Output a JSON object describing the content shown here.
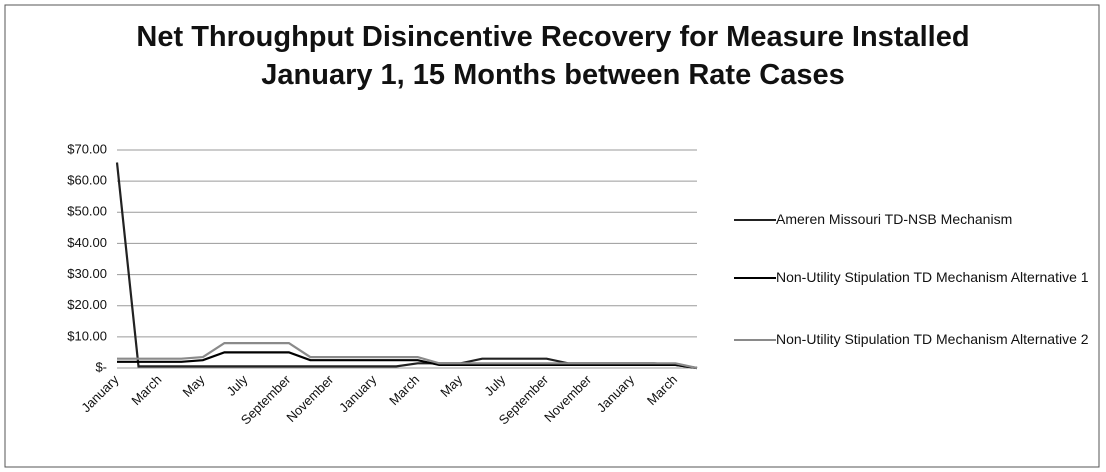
{
  "chart_data": {
    "type": "line",
    "title": "Net Throughput Disincentive Recovery for Measure Installed January 1, 15 Months between Rate Cases",
    "categories": [
      "January",
      null,
      "March",
      null,
      "May",
      null,
      "July",
      null,
      "September",
      null,
      "November",
      null,
      "January",
      null,
      "March",
      null,
      "May",
      null,
      "July",
      null,
      "September",
      null,
      "November",
      null,
      "January",
      null,
      "March",
      null
    ],
    "series": [
      {
        "name": "Ameren Missouri TD-NSB Mechanism",
        "color": "#222222",
        "values": [
          66,
          0.5,
          0.5,
          0.5,
          0.5,
          0.5,
          0.5,
          0.5,
          0.5,
          0.5,
          0.5,
          0.5,
          0.5,
          0.5,
          1.5,
          1.5,
          1.5,
          3,
          3,
          3,
          3,
          1.5,
          1.5,
          1.5,
          1.5,
          1.5,
          1,
          0
        ]
      },
      {
        "name": "Non-Utility Stipulation TD Mechanism Alternative 1",
        "color": "#000000",
        "values": [
          2,
          2,
          2,
          2,
          2.5,
          5,
          5,
          5,
          5,
          2.5,
          2.5,
          2.5,
          2.5,
          2.5,
          2.5,
          1,
          1,
          1,
          1,
          1,
          1,
          1,
          1,
          1,
          1,
          1,
          1,
          0
        ]
      },
      {
        "name": "Non-Utility Stipulation TD Mechanism Alternative 2",
        "color": "#8a8a8a",
        "values": [
          3,
          3,
          3,
          3,
          3.5,
          8,
          8,
          8,
          8,
          3.5,
          3.5,
          3.5,
          3.5,
          3.5,
          3.5,
          1.5,
          1.5,
          1.5,
          1.5,
          1.5,
          1.5,
          1.5,
          1.5,
          1.5,
          1.5,
          1.5,
          1.5,
          0
        ]
      }
    ],
    "ylim": [
      0,
      70
    ],
    "yticks": [
      {
        "value": 0,
        "label": "$-"
      },
      {
        "value": 10,
        "label": "$10.00"
      },
      {
        "value": 20,
        "label": "$20.00"
      },
      {
        "value": 30,
        "label": "$30.00"
      },
      {
        "value": 40,
        "label": "$40.00"
      },
      {
        "value": 50,
        "label": "$50.00"
      },
      {
        "value": 60,
        "label": "$60.00"
      },
      {
        "value": 70,
        "label": "$70.00"
      }
    ],
    "grid": true,
    "legend": "right"
  }
}
